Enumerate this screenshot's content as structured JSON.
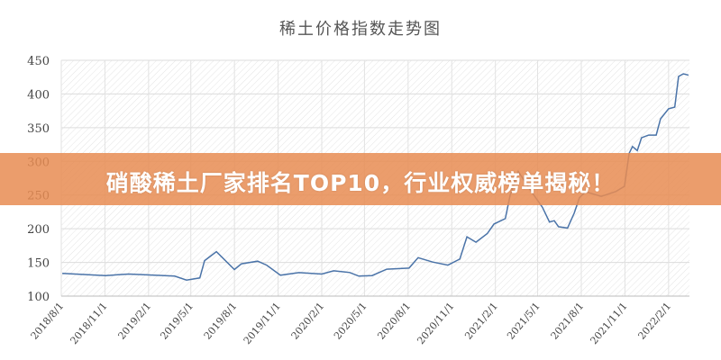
{
  "banner": {
    "text": "硝酸稀土厂家排名TOP10，行业权威榜单揭秘！",
    "color": "#e88c52"
  },
  "chart_data": {
    "type": "line",
    "title": "稀土价格指数走势图",
    "xlabel": "",
    "ylabel": "",
    "ylim": [
      100,
      450
    ],
    "xlim": [
      "2018-08-01",
      "2022-03-17"
    ],
    "yticks": [
      "100",
      "150",
      "200",
      "250",
      "300",
      "350",
      "400",
      "450"
    ],
    "xticks": [
      "2018/8/1",
      "2018/11/1",
      "2019/2/1",
      "2019/5/1",
      "2019/8/1",
      "2019/11/1",
      "2020/2/1",
      "2020/5/1",
      "2020/8/1",
      "2020/11/1",
      "2021/2/1",
      "2021/5/1",
      "2021/8/1",
      "2021/11/1",
      "2022/2/1"
    ],
    "grid": true,
    "line_color": "#4a73a8",
    "series": [
      {
        "x": [
          "2018-08-03",
          "2018-11-02",
          "2018-12-21",
          "2019-03-28",
          "2019-04-22",
          "2019-05-20",
          "2019-05-30",
          "2019-06-24",
          "2019-08-01",
          "2019-08-16",
          "2019-09-19",
          "2019-10-08",
          "2019-11-06",
          "2019-12-15",
          "2020-02-01",
          "2020-02-26",
          "2020-03-31",
          "2020-04-19",
          "2020-05-17",
          "2020-06-17",
          "2020-08-03",
          "2020-08-22",
          "2020-09-22",
          "2020-10-24",
          "2020-11-18",
          "2020-12-03",
          "2020-12-22",
          "2021-01-15",
          "2021-01-29",
          "2021-02-22",
          "2021-03-04",
          "2021-03-21",
          "2021-04-18",
          "2021-05-11",
          "2021-05-26",
          "2021-06-05",
          "2021-06-14",
          "2021-07-03",
          "2021-07-17",
          "2021-07-28",
          "2021-08-10",
          "2021-09-12",
          "2021-10-12",
          "2021-10-31",
          "2021-11-10",
          "2021-11-17",
          "2021-11-27",
          "2021-12-06",
          "2021-12-21",
          "2022-01-06",
          "2022-01-15",
          "2022-02-01",
          "2022-02-14",
          "2022-02-22",
          "2022-03-04",
          "2022-03-15"
        ],
        "y": [
          133.6,
          130.5,
          132.7,
          129.6,
          123.8,
          127,
          152.7,
          166,
          139.4,
          148,
          151.8,
          146,
          131,
          134.9,
          132.7,
          137.6,
          135,
          129.6,
          130.5,
          140,
          141.6,
          157,
          150.5,
          146,
          155,
          188,
          180,
          192.8,
          207,
          215,
          249.6,
          285,
          255,
          232,
          210,
          212,
          203,
          201,
          223,
          246,
          255,
          248,
          255,
          263,
          312,
          322,
          316,
          335,
          339,
          339,
          363,
          378,
          380.5,
          426,
          430,
          428
        ]
      }
    ]
  }
}
